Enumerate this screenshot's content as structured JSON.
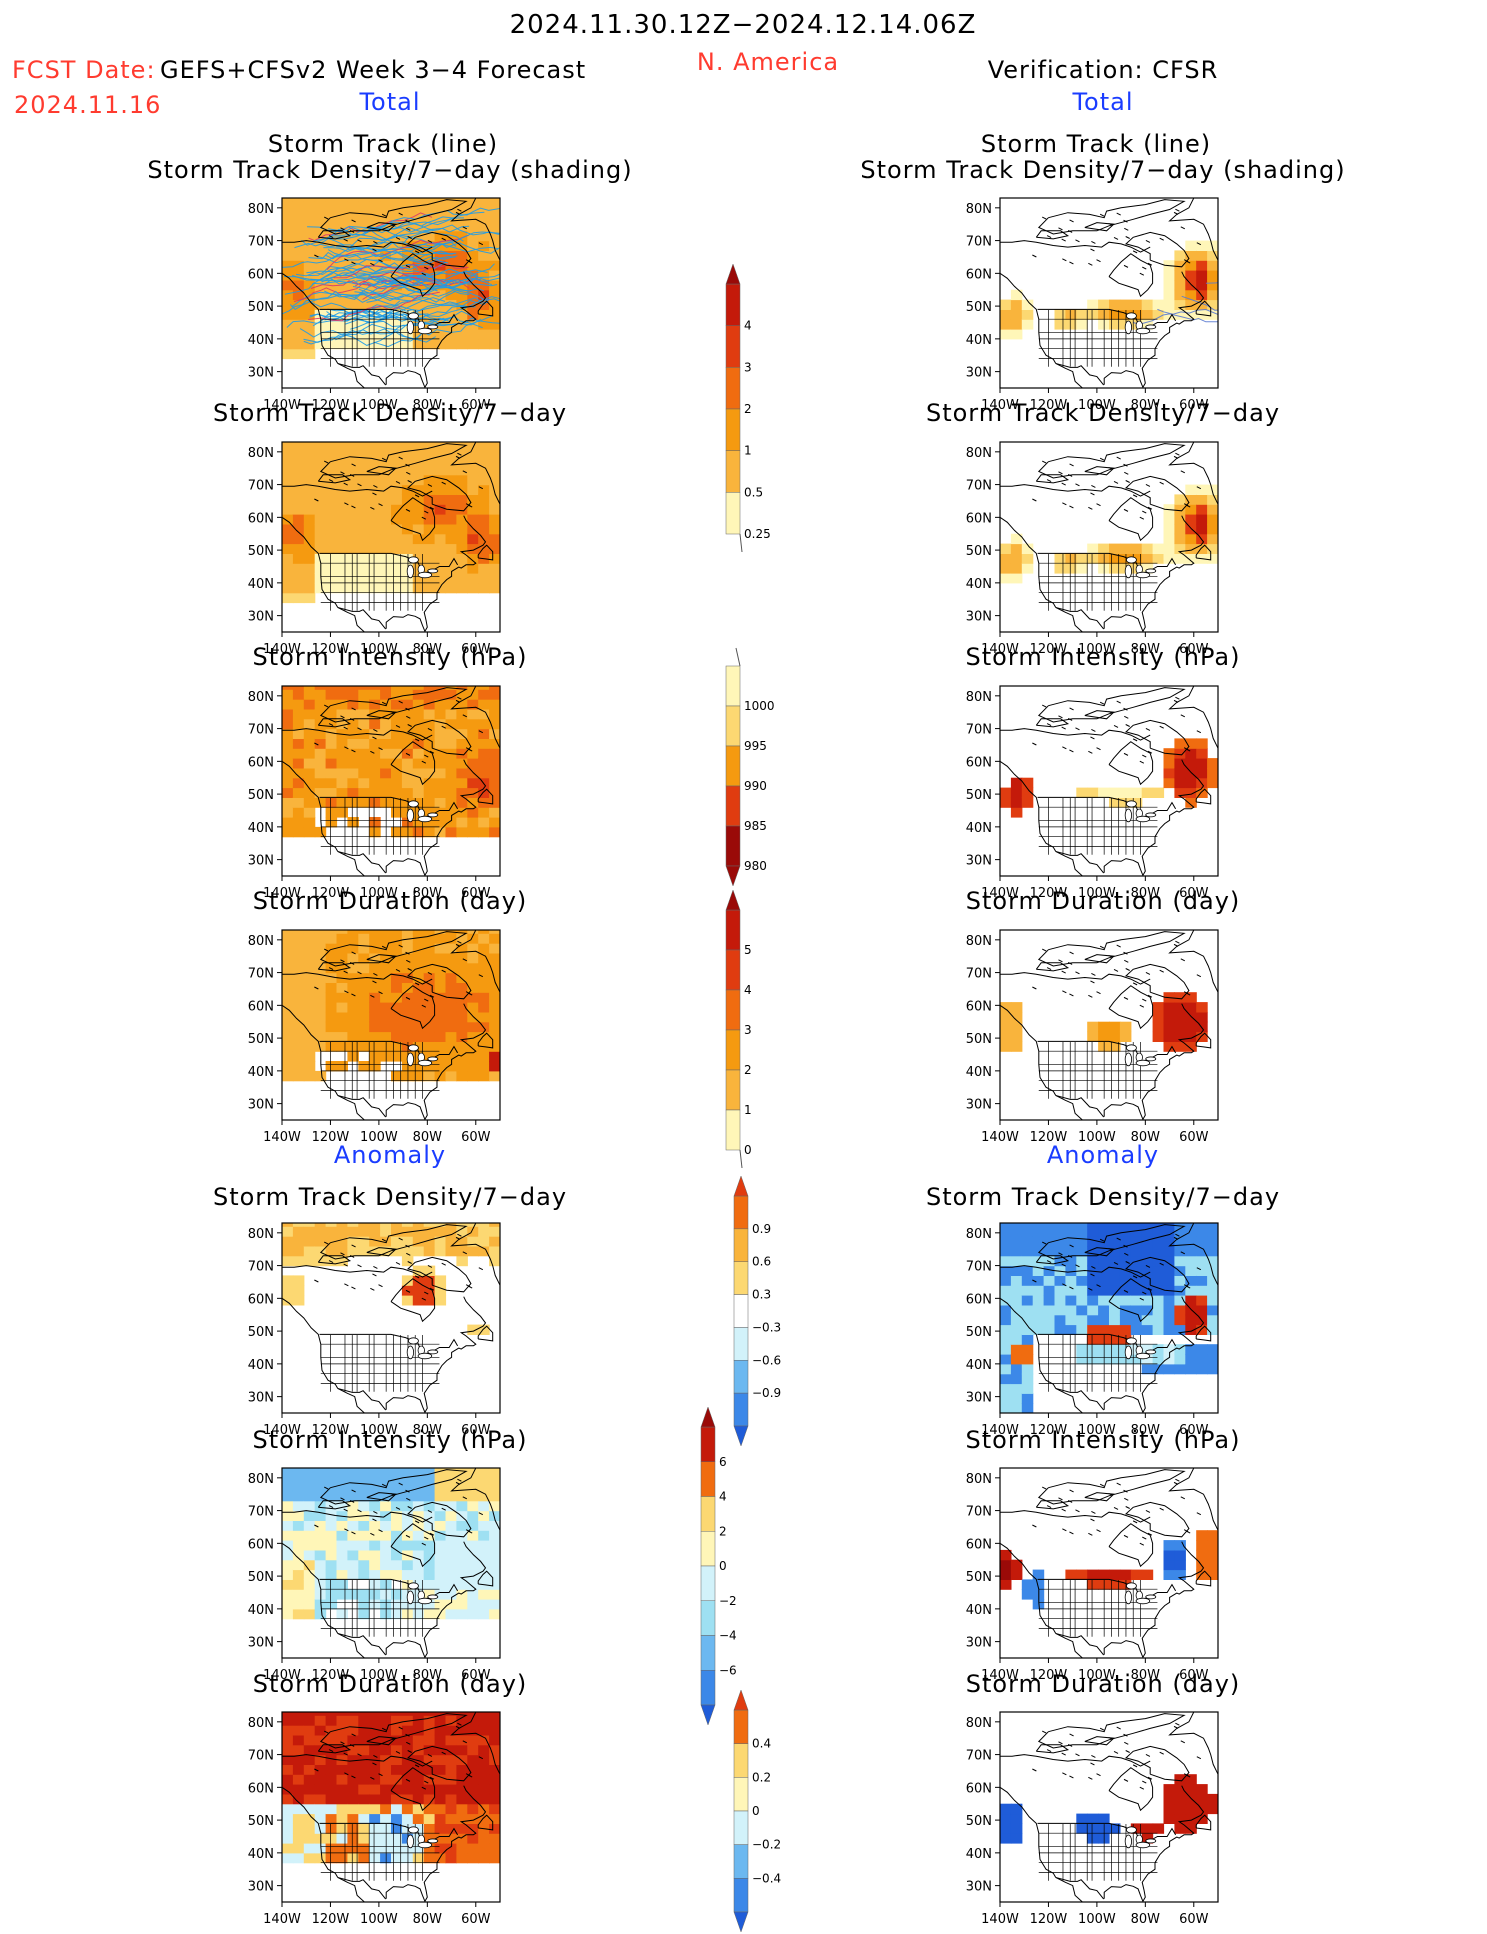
{
  "header": {
    "period": "2024.11.30.12Z−2024.12.14.06Z",
    "fcst_label": "FCST Date:",
    "fcst_model": "GEFS+CFSv2 Week 3−4 Forecast",
    "fcst_date": "2024.11.16",
    "region": "N. America",
    "verification": "Verification: CFSR",
    "total_left": "Total",
    "total_right": "Total",
    "anomaly_left": "Anomaly",
    "anomaly_right": "Anomaly"
  },
  "panels": {
    "track_line_l1": "Storm Track (line)",
    "track_line_l2": "Storm Track Density/7−day (shading)",
    "density": "Storm Track Density/7−day",
    "intensity": "Storm Intensity (hPa)",
    "duration": "Storm Duration (day)"
  },
  "axes": {
    "lat_labels": [
      "80N",
      "70N",
      "60N",
      "50N",
      "40N",
      "30N"
    ],
    "lon_labels": [
      "140W",
      "120W",
      "100W",
      "80W",
      "60W"
    ]
  },
  "colorbars": {
    "density_total": [
      "4",
      "3",
      "2",
      "1",
      "0.5",
      "0.25"
    ],
    "intensity_total": [
      "1000",
      "995",
      "990",
      "985",
      "980"
    ],
    "duration_total": [
      "5",
      "4",
      "3",
      "2",
      "1",
      "0"
    ],
    "density_anom": [
      "0.9",
      "0.6",
      "0.3",
      "−0.3",
      "−0.6",
      "−0.9"
    ],
    "intensity_anom": [
      "6",
      "4",
      "2",
      "0",
      "−2",
      "−4",
      "−6"
    ],
    "duration_anom": [
      "0.4",
      "0.2",
      "0",
      "−0.2",
      "−0.4"
    ]
  },
  "colors": {
    "warm": [
      "#fff6b8",
      "#fcd872",
      "#f9b43c",
      "#f59a10",
      "#f06c10",
      "#e03c10",
      "#c41a0a",
      "#9a0a08"
    ],
    "cool": [
      "#d2f2fa",
      "#9ee0f2",
      "#6cb8f0",
      "#3c88e8",
      "#1f5cd8"
    ],
    "track_line": "#1e9be8",
    "track_line_obs": "#5a7ad0",
    "title_red": "#ff3b2f",
    "title_blue": "#1a3cff"
  }
}
